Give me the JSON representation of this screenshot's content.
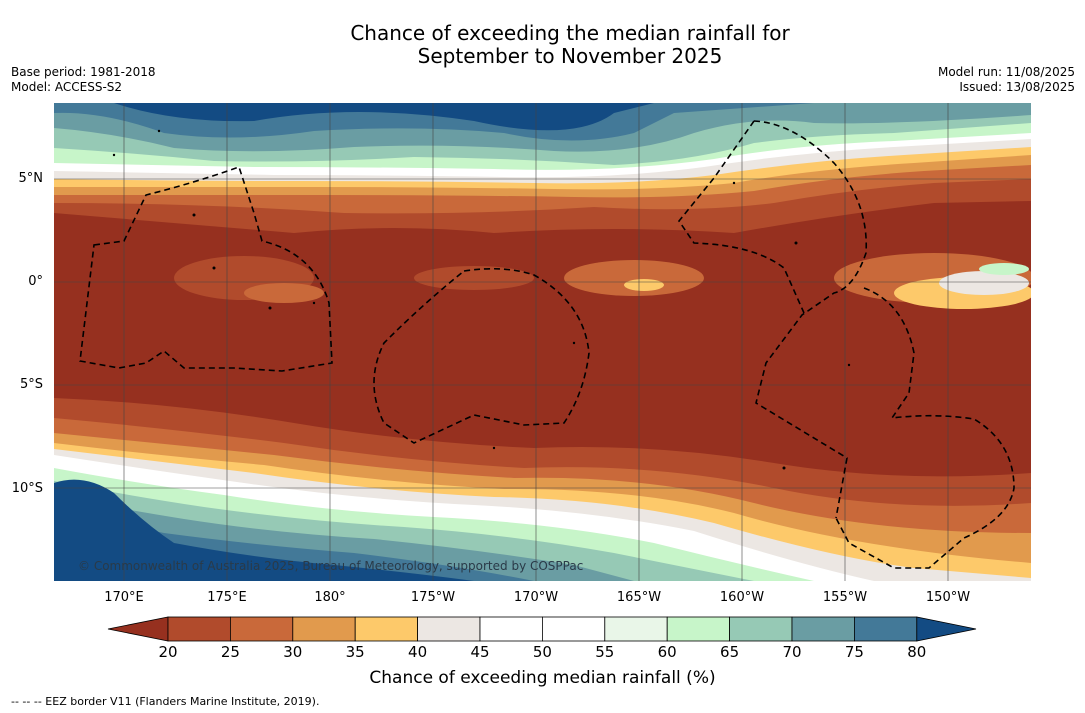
{
  "title": {
    "line1": "Chance of exceeding the median rainfall for",
    "line2": "September to November 2025"
  },
  "meta": {
    "base_period": "Base period: 1981-2018",
    "model": "Model: ACCESS-S2",
    "model_run": "Model run: 11/08/2025",
    "issued": "Issued: 13/08/2025"
  },
  "map": {
    "lat_labels": [
      "5°N",
      "0°",
      "5°S",
      "10°S"
    ],
    "lon_labels": [
      "170°E",
      "175°E",
      "180°",
      "175°W",
      "170°W",
      "165°W",
      "160°W",
      "155°W",
      "150°W"
    ],
    "copyright": "© Commonwealth of Australia 2025, Bureau of Meteorology, supported by COSPPac"
  },
  "colorbar": {
    "ticks": [
      "20",
      "25",
      "30",
      "35",
      "40",
      "45",
      "50",
      "55",
      "60",
      "65",
      "70",
      "75",
      "80"
    ],
    "label": "Chance of exceeding median rainfall (%)",
    "colors": [
      "#96301f",
      "#b14b2c",
      "#c9693a",
      "#e19a4d",
      "#fdc96a",
      "#ece7e3",
      "#ffffff",
      "#ffffff",
      "#e9f6e8",
      "#c7f5c9",
      "#96c9b5",
      "#6a9da3",
      "#437998",
      "#134b83"
    ]
  },
  "footnote": "--  --  -- EEZ border V11 (Flanders Marine Institute, 2019)."
}
